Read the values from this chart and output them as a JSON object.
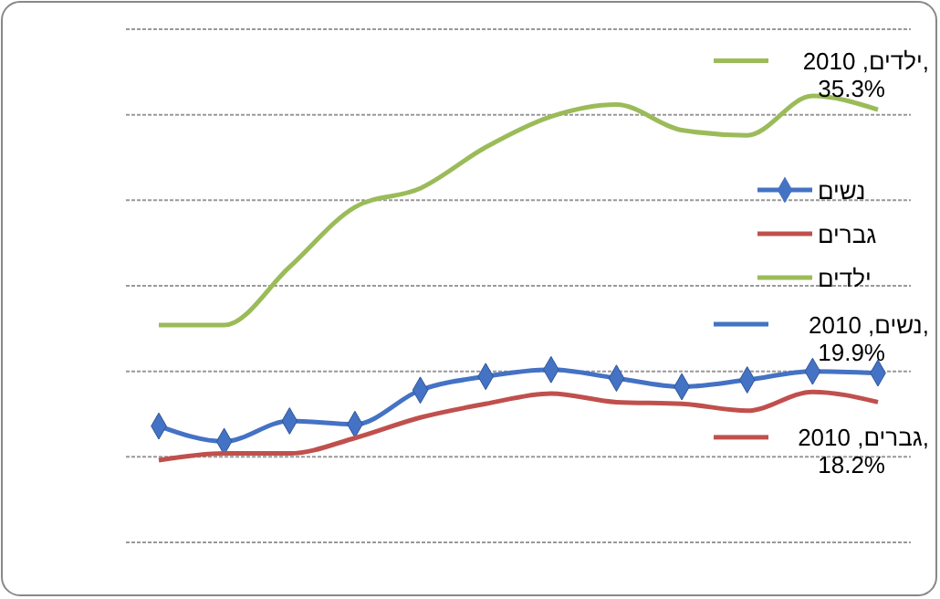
{
  "chart_data": {
    "type": "line",
    "categories": [
      null,
      null,
      null,
      null,
      null,
      null,
      null,
      null,
      null,
      null,
      null,
      null
    ],
    "ylim": [
      10,
      40
    ],
    "yticks": [
      {
        "value": 10,
        "label": null
      },
      {
        "value": 15,
        "label": null
      },
      {
        "value": 20,
        "label": null
      },
      {
        "value": 25,
        "label": null
      },
      {
        "value": 30,
        "label": null
      },
      {
        "value": 35,
        "label": null
      },
      {
        "value": 40,
        "label": null
      }
    ],
    "grid": "y",
    "legend": "right",
    "series": [
      {
        "name": "נשים",
        "color": "#4472c4",
        "marker": "diamond",
        "values": [
          16.8,
          15.9,
          17.1,
          16.9,
          18.9,
          19.7,
          20.1,
          19.6,
          19.1,
          19.5,
          20.0,
          19.9
        ],
        "value_labels": [
          null,
          null,
          null,
          null,
          null,
          null,
          null,
          null,
          null,
          null,
          null,
          "נשים, 2010, 19.9%"
        ]
      },
      {
        "name": "גברים",
        "color": "#c0504d",
        "marker": "none",
        "values": [
          14.8,
          15.2,
          15.2,
          16.1,
          17.3,
          18.1,
          18.7,
          18.2,
          18.1,
          17.7,
          18.8,
          18.2
        ],
        "value_labels": [
          null,
          null,
          null,
          null,
          null,
          null,
          null,
          null,
          null,
          null,
          null,
          "גברים, 2010, 18.2%"
        ]
      },
      {
        "name": "ילדים",
        "color": "#9bbb59",
        "marker": "none",
        "values": [
          22.7,
          22.7,
          26.1,
          29.6,
          30.7,
          33.1,
          34.9,
          35.6,
          34.1,
          33.8,
          36.1,
          35.3
        ],
        "value_labels": [
          null,
          null,
          null,
          null,
          null,
          null,
          null,
          null,
          null,
          null,
          null,
          "ילדים, 2010, 35.3%"
        ]
      }
    ]
  }
}
